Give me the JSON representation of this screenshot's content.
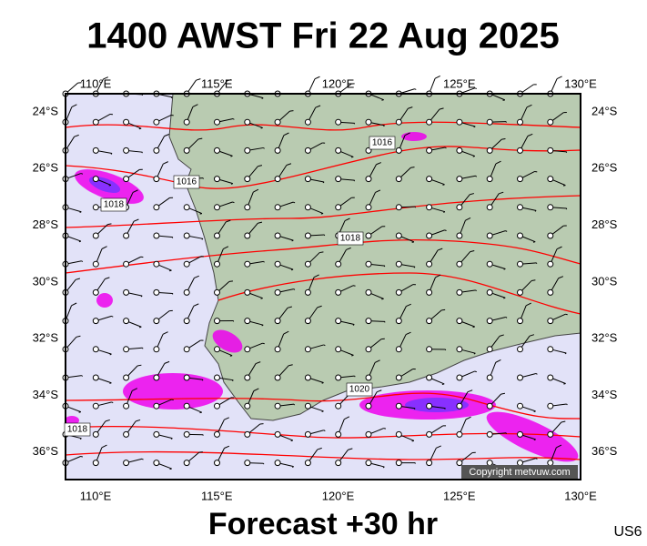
{
  "header": {
    "title": "1400 AWST Fri 22 Aug 2025"
  },
  "map": {
    "lon_labels": [
      "110°E",
      "115°E",
      "120°E",
      "125°E",
      "130°E"
    ],
    "lat_labels": [
      "24°S",
      "26°S",
      "28°S",
      "30°S",
      "32°S",
      "34°S",
      "36°S"
    ],
    "isobar_labels": [
      "1016",
      "1016",
      "1018",
      "1018",
      "1020",
      "1018"
    ],
    "copyright": "Copyright metvuw.com"
  },
  "footer": {
    "forecast": "Forecast +30 hr",
    "code": "US6"
  }
}
